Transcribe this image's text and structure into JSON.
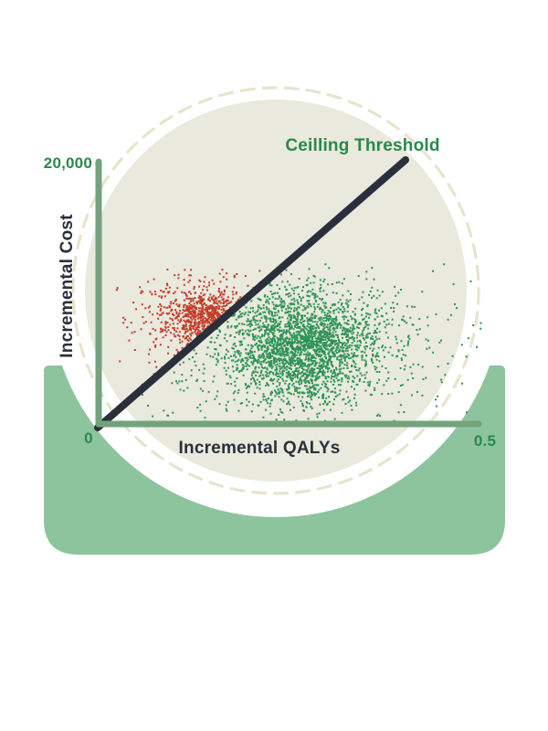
{
  "page": {
    "background": "#ffffff"
  },
  "decor": {
    "panel_color": "#8ec49d",
    "white_ring_color": "#ffffff",
    "ring_dash_color": "#e8e4cc",
    "disc_color": "#e9e9dd"
  },
  "chart_data": {
    "type": "scatter",
    "title": "",
    "xlabel": "Incremental QALYs",
    "ylabel": "Incremental Cost",
    "xlim": [
      0,
      0.5
    ],
    "ylim": [
      0,
      20000
    ],
    "x_tick_labels": [
      "0",
      "0.5"
    ],
    "y_tick_labels": [
      "20,000"
    ],
    "grid": "off",
    "legend": "none",
    "axis_color": "#73a37c",
    "tick_label_color": "#28894c",
    "axis_label_color": "#2a2f3c",
    "threshold_line": {
      "label": "Ceilling Threshold",
      "label_color": "#28894c",
      "color": "#2a2f3c",
      "from": {
        "x": 0,
        "y": 0
      },
      "to": {
        "x": 0.4,
        "y": 20000
      }
    },
    "seed": 1337,
    "series": [
      {
        "name": "simulations-above-threshold",
        "color": "#c33e2b",
        "position": "above_threshold",
        "clusters": [
          {
            "n": 450,
            "mean_x": 0.138,
            "mean_y": 8100,
            "sd_x": 0.02,
            "sd_y": 900
          },
          {
            "n": 230,
            "mean_x": 0.14,
            "mean_y": 7890,
            "sd_x": 0.045,
            "sd_y": 1870
          },
          {
            "n": 90,
            "mean_x": 0.128,
            "mean_y": 7750,
            "sd_x": 0.074,
            "sd_y": 2490
          }
        ]
      },
      {
        "name": "simulations-below-threshold",
        "color": "#2d9355",
        "position": "below_threshold",
        "clusters": [
          {
            "n": 1400,
            "mean_x": 0.263,
            "mean_y": 5810,
            "sd_x": 0.041,
            "sd_y": 1800
          },
          {
            "n": 1100,
            "mean_x": 0.259,
            "mean_y": 5950,
            "sd_x": 0.074,
            "sd_y": 2490
          },
          {
            "n": 300,
            "mean_x": 0.277,
            "mean_y": 6370,
            "sd_x": 0.113,
            "sd_y": 2910
          }
        ]
      }
    ]
  }
}
